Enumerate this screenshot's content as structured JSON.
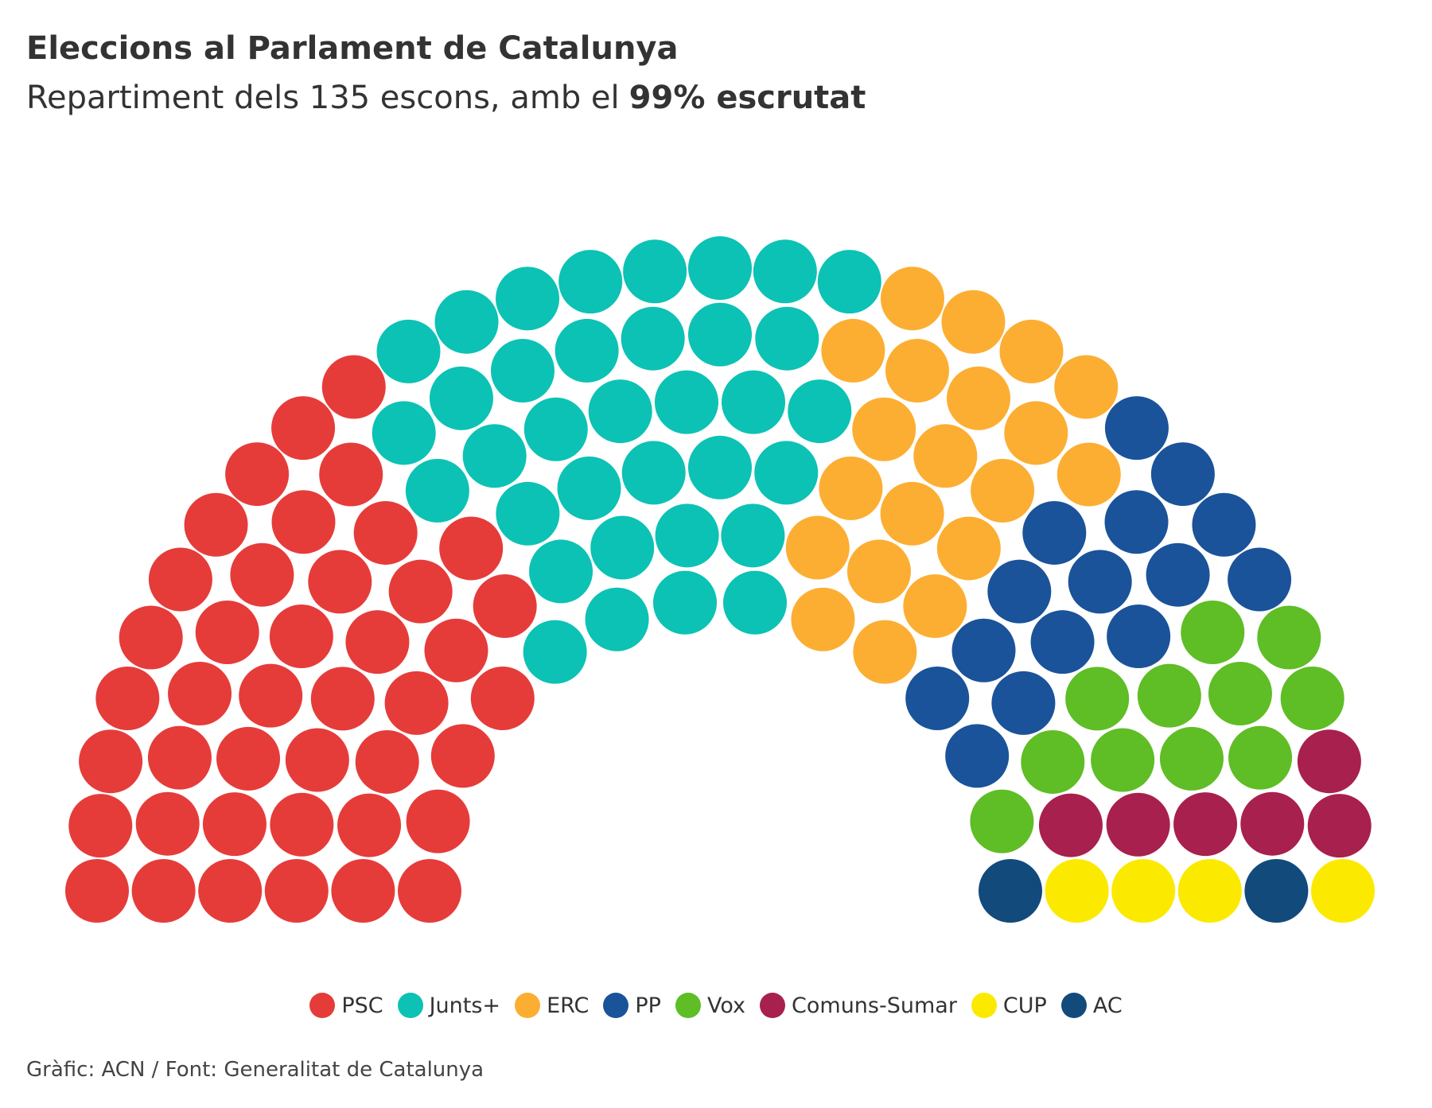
{
  "chart_data": {
    "type": "parliament",
    "title": "Eleccions al Parlament de Catalunya",
    "subtitle": [
      "Repartiment dels 135 escons, amb el",
      "99% escrutat"
    ],
    "series": [
      {
        "name": "PSC",
        "color": "#e53c3a",
        "values": [
          42
        ]
      },
      {
        "name": "Junts+",
        "color": "#0cc2b4",
        "values": [
          35
        ]
      },
      {
        "name": "ERC",
        "color": "#fcae33",
        "values": [
          20
        ]
      },
      {
        "name": "PP",
        "color": "#1a5399",
        "values": [
          15
        ]
      },
      {
        "name": "Vox",
        "color": "#5fbd25",
        "values": [
          11
        ]
      },
      {
        "name": "Comuns-Sumar",
        "color": "#a8204d",
        "values": [
          6
        ]
      },
      {
        "name": "CUP",
        "color": "#fbea00",
        "values": [
          4
        ]
      },
      {
        "name": "AC",
        "color": "#124a7c",
        "values": [
          2
        ]
      }
    ],
    "source": "Gràfic: ACN / Font: Generalitat de Catalunya"
  }
}
